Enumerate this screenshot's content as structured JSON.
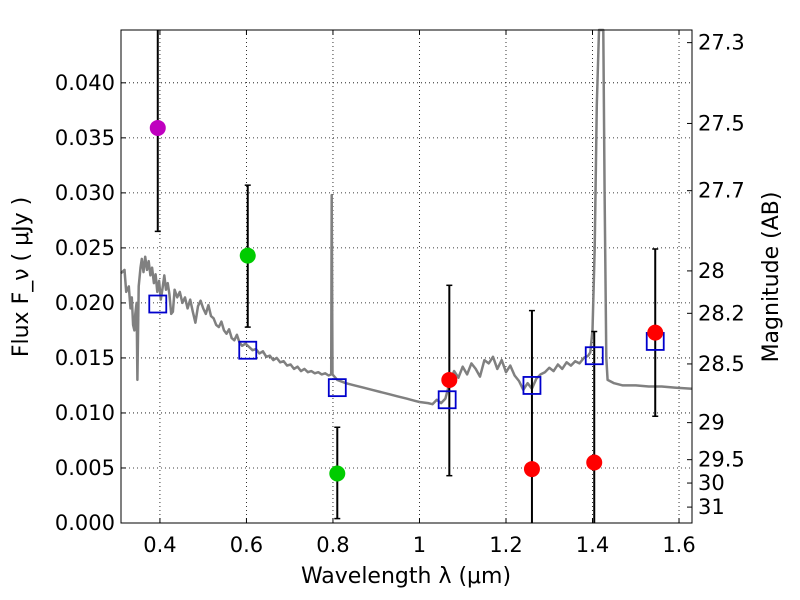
{
  "chart_data": {
    "type": "scatter",
    "xlabel": "Wavelength  λ (μm)",
    "ylabel": "Flux  F_ν  ( μJy )",
    "ylabel_right": "Magnitude (AB)",
    "xlim": [
      0.31,
      1.63
    ],
    "ylim": [
      0.0,
      0.0448
    ],
    "grid": true,
    "x_ticks": [
      {
        "value": 0.4,
        "label": "0.4"
      },
      {
        "value": 0.6,
        "label": "0.6"
      },
      {
        "value": 0.8,
        "label": "0.8"
      },
      {
        "value": 1.0,
        "label": "1"
      },
      {
        "value": 1.2,
        "label": "1.2"
      },
      {
        "value": 1.4,
        "label": "1.4"
      },
      {
        "value": 1.6,
        "label": "1.6"
      }
    ],
    "y_ticks": [
      {
        "value": 0.0,
        "label": "0.000"
      },
      {
        "value": 0.005,
        "label": "0.005"
      },
      {
        "value": 0.01,
        "label": "0.010"
      },
      {
        "value": 0.015,
        "label": "0.015"
      },
      {
        "value": 0.02,
        "label": "0.020"
      },
      {
        "value": 0.025,
        "label": "0.025"
      },
      {
        "value": 0.03,
        "label": "0.030"
      },
      {
        "value": 0.035,
        "label": "0.035"
      },
      {
        "value": 0.04,
        "label": "0.040"
      }
    ],
    "right_ticks": [
      {
        "mag": 27.3,
        "label": "27.3"
      },
      {
        "mag": 27.5,
        "label": "27.5"
      },
      {
        "mag": 27.7,
        "label": "27.7"
      },
      {
        "mag": 28.0,
        "label": "28"
      },
      {
        "mag": 28.2,
        "label": "28.2"
      },
      {
        "mag": 28.5,
        "label": "28.5"
      },
      {
        "mag": 29.0,
        "label": "29"
      },
      {
        "mag": 29.5,
        "label": "29.5"
      },
      {
        "mag": 30.0,
        "label": "30"
      },
      {
        "mag": 31.0,
        "label": "31"
      }
    ],
    "observed": [
      {
        "x": 0.395,
        "y": 0.0359,
        "err_low": 0.0265,
        "err_high": 0.0448,
        "color": "#bf00bf"
      },
      {
        "x": 0.603,
        "y": 0.0243,
        "err_low": 0.0178,
        "err_high": 0.0307,
        "color": "#00cc00"
      },
      {
        "x": 0.81,
        "y": 0.0045,
        "err_low": 0.0004,
        "err_high": 0.0087,
        "color": "#00cc00"
      },
      {
        "x": 1.069,
        "y": 0.013,
        "err_low": 0.0043,
        "err_high": 0.0216,
        "color": "#ff0000"
      },
      {
        "x": 1.26,
        "y": 0.0049,
        "err_low": 0.0,
        "err_high": 0.0193,
        "color": "#ff0000"
      },
      {
        "x": 1.404,
        "y": 0.0055,
        "err_low": 0.0,
        "err_high": 0.0174,
        "color": "#ff0000"
      },
      {
        "x": 1.545,
        "y": 0.0173,
        "err_low": 0.0097,
        "err_high": 0.0249,
        "color": "#ff0000"
      }
    ],
    "model_bands": [
      {
        "x": 0.395,
        "y": 0.0199
      },
      {
        "x": 0.603,
        "y": 0.0157
      },
      {
        "x": 0.81,
        "y": 0.0123
      },
      {
        "x": 1.064,
        "y": 0.0112
      },
      {
        "x": 1.26,
        "y": 0.0125
      },
      {
        "x": 1.404,
        "y": 0.0152
      },
      {
        "x": 1.545,
        "y": 0.0165
      }
    ],
    "model_spectrum": [
      [
        0.31,
        0.0227
      ],
      [
        0.318,
        0.023
      ],
      [
        0.322,
        0.021
      ],
      [
        0.328,
        0.0215
      ],
      [
        0.332,
        0.0195
      ],
      [
        0.335,
        0.0205
      ],
      [
        0.338,
        0.018
      ],
      [
        0.341,
        0.0175
      ],
      [
        0.343,
        0.019
      ],
      [
        0.346,
        0.02
      ],
      [
        0.348,
        0.013
      ],
      [
        0.351,
        0.0215
      ],
      [
        0.355,
        0.0232
      ],
      [
        0.358,
        0.024
      ],
      [
        0.362,
        0.0228
      ],
      [
        0.366,
        0.0242
      ],
      [
        0.37,
        0.023
      ],
      [
        0.374,
        0.0238
      ],
      [
        0.378,
        0.0225
      ],
      [
        0.382,
        0.0232
      ],
      [
        0.386,
        0.0218
      ],
      [
        0.39,
        0.0226
      ],
      [
        0.394,
        0.021
      ],
      [
        0.398,
        0.022
      ],
      [
        0.402,
        0.0203
      ],
      [
        0.406,
        0.0213
      ],
      [
        0.41,
        0.0225
      ],
      [
        0.414,
        0.0212
      ],
      [
        0.418,
        0.0218
      ],
      [
        0.422,
        0.0208
      ],
      [
        0.426,
        0.019
      ],
      [
        0.43,
        0.0192
      ],
      [
        0.434,
        0.0212
      ],
      [
        0.44,
        0.0205
      ],
      [
        0.446,
        0.021
      ],
      [
        0.452,
        0.02
      ],
      [
        0.458,
        0.0205
      ],
      [
        0.464,
        0.0195
      ],
      [
        0.47,
        0.0203
      ],
      [
        0.476,
        0.0192
      ],
      [
        0.482,
        0.0182
      ],
      [
        0.488,
        0.0197
      ],
      [
        0.494,
        0.0202
      ],
      [
        0.5,
        0.0195
      ],
      [
        0.506,
        0.019
      ],
      [
        0.512,
        0.0198
      ],
      [
        0.518,
        0.0188
      ],
      [
        0.524,
        0.0186
      ],
      [
        0.53,
        0.018
      ],
      [
        0.536,
        0.0178
      ],
      [
        0.542,
        0.0183
      ],
      [
        0.548,
        0.0175
      ],
      [
        0.554,
        0.0172
      ],
      [
        0.56,
        0.0176
      ],
      [
        0.566,
        0.0168
      ],
      [
        0.572,
        0.0166
      ],
      [
        0.578,
        0.0171
      ],
      [
        0.584,
        0.0164
      ],
      [
        0.59,
        0.0161
      ],
      [
        0.598,
        0.0163
      ],
      [
        0.606,
        0.016
      ],
      [
        0.614,
        0.0157
      ],
      [
        0.622,
        0.0158
      ],
      [
        0.63,
        0.0154
      ],
      [
        0.638,
        0.0156
      ],
      [
        0.646,
        0.0151
      ],
      [
        0.654,
        0.0152
      ],
      [
        0.662,
        0.0148
      ],
      [
        0.67,
        0.015
      ],
      [
        0.678,
        0.0146
      ],
      [
        0.686,
        0.0147
      ],
      [
        0.694,
        0.0143
      ],
      [
        0.702,
        0.0144
      ],
      [
        0.71,
        0.014
      ],
      [
        0.718,
        0.0142
      ],
      [
        0.726,
        0.0138
      ],
      [
        0.734,
        0.014
      ],
      [
        0.742,
        0.0137
      ],
      [
        0.75,
        0.0138
      ],
      [
        0.758,
        0.0136
      ],
      [
        0.766,
        0.0137
      ],
      [
        0.774,
        0.0135
      ],
      [
        0.782,
        0.0136
      ],
      [
        0.79,
        0.0134
      ],
      [
        0.796,
        0.0135
      ],
      [
        0.797,
        0.0298
      ],
      [
        0.799,
        0.0135
      ],
      [
        0.81,
        0.013
      ],
      [
        0.83,
        0.0127
      ],
      [
        0.85,
        0.0125
      ],
      [
        0.87,
        0.0123
      ],
      [
        0.89,
        0.0121
      ],
      [
        0.91,
        0.0119
      ],
      [
        0.93,
        0.0117
      ],
      [
        0.95,
        0.0115
      ],
      [
        0.97,
        0.0113
      ],
      [
        0.99,
        0.0111
      ],
      [
        1.0,
        0.011
      ],
      [
        1.02,
        0.0109
      ],
      [
        1.03,
        0.0108
      ],
      [
        1.04,
        0.0112
      ],
      [
        1.05,
        0.0109
      ],
      [
        1.06,
        0.0113
      ],
      [
        1.07,
        0.0128
      ],
      [
        1.08,
        0.0138
      ],
      [
        1.09,
        0.0132
      ],
      [
        1.1,
        0.0142
      ],
      [
        1.11,
        0.0135
      ],
      [
        1.12,
        0.0145
      ],
      [
        1.13,
        0.014
      ],
      [
        1.14,
        0.0133
      ],
      [
        1.15,
        0.0148
      ],
      [
        1.16,
        0.0145
      ],
      [
        1.17,
        0.0151
      ],
      [
        1.18,
        0.014
      ],
      [
        1.19,
        0.0148
      ],
      [
        1.2,
        0.0137
      ],
      [
        1.21,
        0.0143
      ],
      [
        1.22,
        0.0134
      ],
      [
        1.23,
        0.0129
      ],
      [
        1.24,
        0.0121
      ],
      [
        1.25,
        0.0127
      ],
      [
        1.26,
        0.0122
      ],
      [
        1.27,
        0.0131
      ],
      [
        1.28,
        0.0135
      ],
      [
        1.29,
        0.0137
      ],
      [
        1.3,
        0.0141
      ],
      [
        1.31,
        0.0138
      ],
      [
        1.32,
        0.0144
      ],
      [
        1.33,
        0.014
      ],
      [
        1.34,
        0.0146
      ],
      [
        1.35,
        0.0143
      ],
      [
        1.36,
        0.0147
      ],
      [
        1.37,
        0.0145
      ],
      [
        1.38,
        0.015
      ],
      [
        1.39,
        0.0152
      ],
      [
        1.395,
        0.0155
      ],
      [
        1.4,
        0.0175
      ],
      [
        1.405,
        0.025
      ],
      [
        1.41,
        0.038
      ],
      [
        1.415,
        0.0448
      ],
      [
        1.425,
        0.0448
      ],
      [
        1.428,
        0.03
      ],
      [
        1.432,
        0.015
      ],
      [
        1.435,
        0.013
      ],
      [
        1.45,
        0.0127
      ],
      [
        1.47,
        0.0125
      ],
      [
        1.5,
        0.0125
      ],
      [
        1.53,
        0.0124
      ],
      [
        1.56,
        0.0124
      ],
      [
        1.59,
        0.0123
      ],
      [
        1.63,
        0.0122
      ]
    ]
  }
}
